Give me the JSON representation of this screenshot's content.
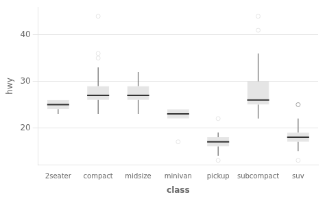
{
  "chart_data": {
    "type": "box",
    "xlabel": "class",
    "ylabel": "hwy",
    "categories": [
      "2seater",
      "compact",
      "midsize",
      "minivan",
      "pickup",
      "subcompact",
      "suv"
    ],
    "q1": [
      24,
      26,
      26,
      22,
      16,
      25,
      17
    ],
    "median": [
      25,
      27,
      27,
      23,
      17,
      26,
      18
    ],
    "q3": [
      26,
      29,
      29,
      24,
      18,
      30,
      19
    ],
    "whisker_low": [
      23,
      23,
      23,
      22,
      14,
      22,
      15
    ],
    "whisker_high": [
      26,
      33,
      32,
      24,
      19,
      36,
      22
    ],
    "outliers": [
      [],
      [
        35,
        36,
        44
      ],
      [],
      [
        17
      ],
      [
        22,
        13
      ],
      [
        41,
        44
      ],
      [
        25,
        25,
        25,
        25,
        13
      ]
    ],
    "ylim": [
      12,
      46
    ],
    "yticks": [
      20,
      30,
      40
    ],
    "grid": "y"
  }
}
